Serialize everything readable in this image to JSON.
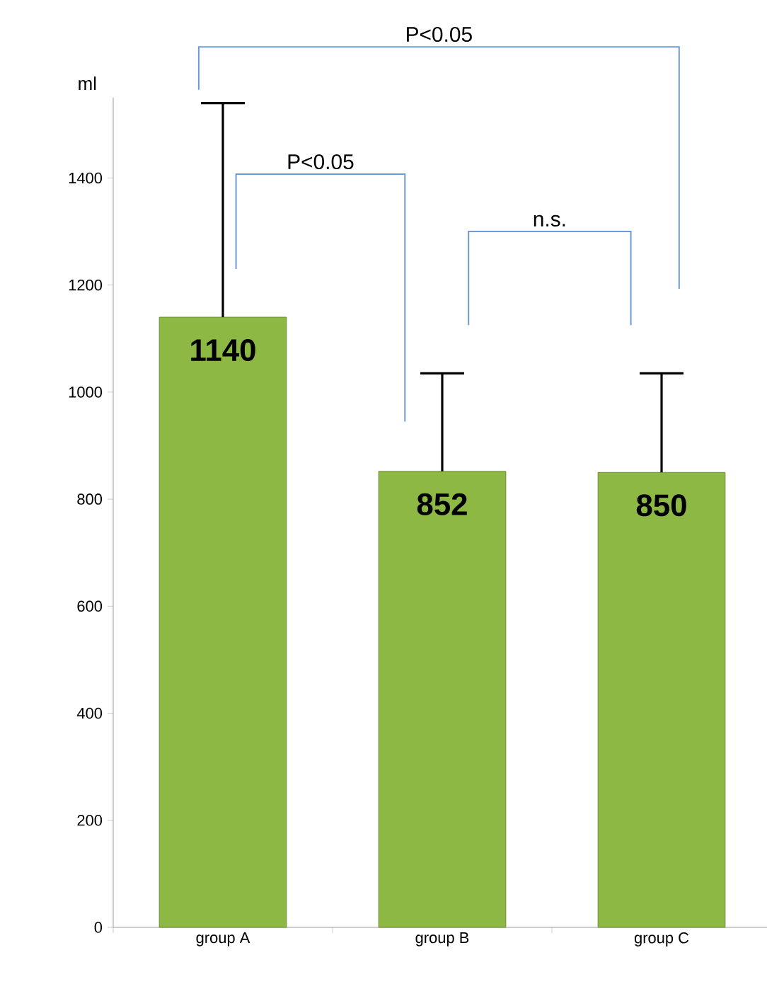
{
  "chart_data": {
    "type": "bar",
    "ylabel": "ml",
    "categories": [
      "group A",
      "group B",
      "group C"
    ],
    "values": [
      1140,
      852,
      850
    ],
    "color": "#8db843",
    "errors": [
      [
        1140,
        1540
      ],
      [
        852,
        1035
      ],
      [
        850,
        1035
      ]
    ],
    "data_labels": true,
    "ylim": [
      0,
      1550
    ],
    "yticks": [
      0,
      200,
      400,
      600,
      800,
      1000,
      1200,
      1400
    ],
    "annotations": [
      "P<0.05",
      "n.s.",
      "P<0.05"
    ],
    "grid": false
  }
}
